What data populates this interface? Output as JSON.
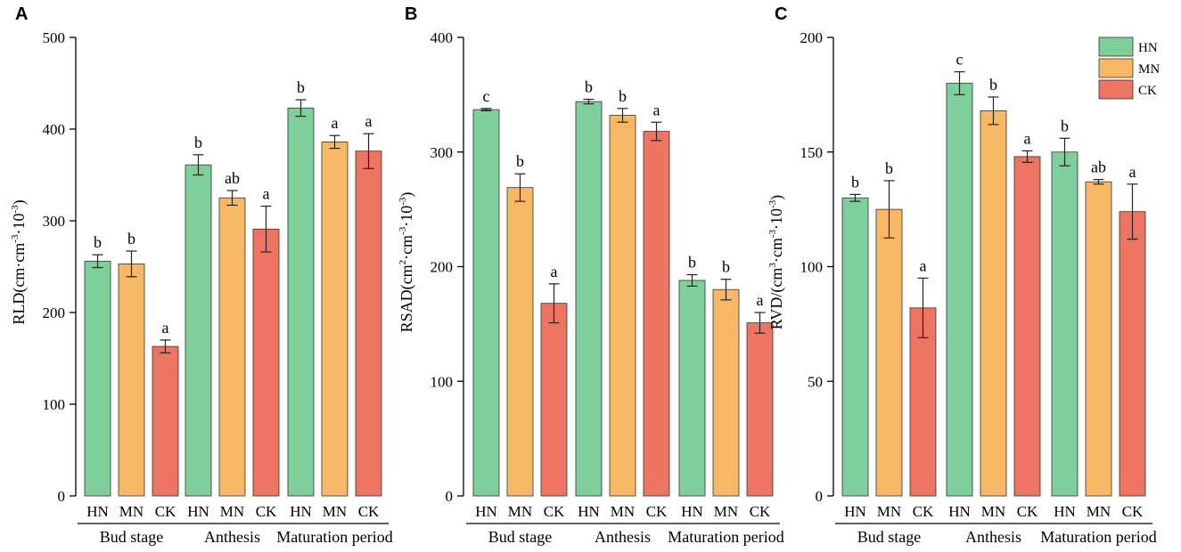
{
  "colors": {
    "HN": "#7fcf9c",
    "MN": "#f7b865",
    "CK": "#ec7461"
  },
  "legend": [
    "HN",
    "MN",
    "CK"
  ],
  "chart_data": [
    {
      "type": "bar",
      "panel": "A",
      "ylabel_main": "RLD(cm·cm",
      "ylabel_sup1": "-3",
      "ylabel_mid": "·10",
      "ylabel_sup2": "-3",
      "ylabel_end": ")",
      "ylim": [
        0,
        500
      ],
      "yticks": [
        0,
        100,
        200,
        300,
        400,
        500
      ],
      "groups": [
        "Bud stage",
        "Anthesis",
        "Maturation period"
      ],
      "series_names": [
        "HN",
        "MN",
        "CK"
      ],
      "values": [
        [
          256,
          253,
          163
        ],
        [
          361,
          325,
          291
        ],
        [
          423,
          386,
          376
        ]
      ],
      "errors": [
        [
          7,
          14,
          7
        ],
        [
          11,
          8,
          25
        ],
        [
          9,
          7,
          19
        ]
      ],
      "letters": [
        [
          "b",
          "b",
          "a"
        ],
        [
          "b",
          "ab",
          "a"
        ],
        [
          "b",
          "a",
          "a"
        ]
      ]
    },
    {
      "type": "bar",
      "panel": "B",
      "ylabel_main": "RSAD(cm",
      "ylabel_sup1": "2",
      "ylabel_mid": "·cm",
      "ylabel_sup2": "-3",
      "ylabel_end": "·10",
      "ylabel_sup3": "-3",
      "ylabel_tail": ")",
      "ylim": [
        0,
        400
      ],
      "yticks": [
        0,
        100,
        200,
        300,
        400
      ],
      "groups": [
        "Bud stage",
        "Anthesis",
        "Maturation period"
      ],
      "series_names": [
        "HN",
        "MN",
        "CK"
      ],
      "values": [
        [
          337,
          269,
          168
        ],
        [
          344,
          332,
          318
        ],
        [
          188,
          180,
          151
        ]
      ],
      "errors": [
        [
          1,
          12,
          17
        ],
        [
          2,
          6,
          8
        ],
        [
          5,
          9,
          9
        ]
      ],
      "letters": [
        [
          "c",
          "b",
          "a"
        ],
        [
          "b",
          "b",
          "a"
        ],
        [
          "b",
          "b",
          "a"
        ]
      ]
    },
    {
      "type": "bar",
      "panel": "C",
      "ylabel_main": "RVD/(cm",
      "ylabel_sup1": "3",
      "ylabel_mid": "·cm",
      "ylabel_sup2": "-3",
      "ylabel_end": "·10",
      "ylabel_sup3": "-3",
      "ylabel_tail": ")",
      "ylim": [
        0,
        200
      ],
      "yticks": [
        0,
        50,
        100,
        150,
        200
      ],
      "groups": [
        "Bud stage",
        "Anthesis",
        "Maturation period"
      ],
      "series_names": [
        "HN",
        "MN",
        "CK"
      ],
      "values": [
        [
          130,
          125,
          82
        ],
        [
          180,
          168,
          148
        ],
        [
          150,
          137,
          124
        ]
      ],
      "errors": [
        [
          1.5,
          12.5,
          13
        ],
        [
          5,
          6,
          2.5
        ],
        [
          6,
          1,
          12
        ]
      ],
      "letters": [
        [
          "b",
          "b",
          "a"
        ],
        [
          "c",
          "b",
          "a"
        ],
        [
          "b",
          "ab",
          "a"
        ]
      ]
    }
  ]
}
